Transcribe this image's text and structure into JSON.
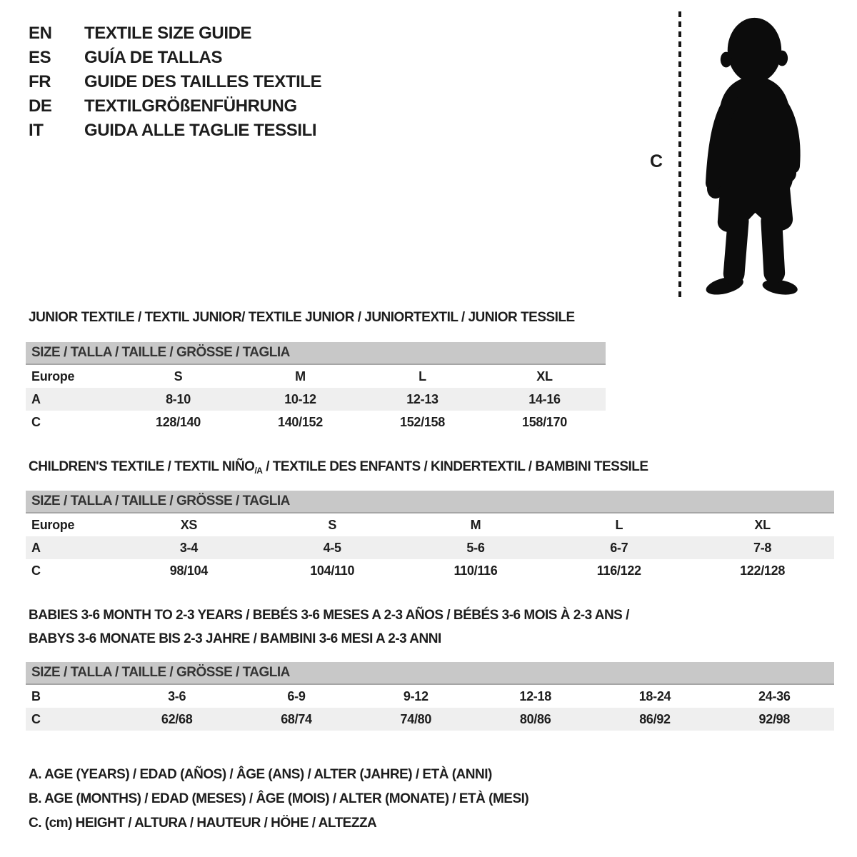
{
  "languages": [
    {
      "code": "EN",
      "label": "TEXTILE SIZE GUIDE"
    },
    {
      "code": "ES",
      "label": "GUÍA DE TALLAS"
    },
    {
      "code": "FR",
      "label": "GUIDE DES TAILLES TEXTILE"
    },
    {
      "code": "DE",
      "label": "TEXTILGRÖßENFÜHRUNG"
    },
    {
      "code": "IT",
      "label": "GUIDA ALLE TAGLIE TESSILI"
    }
  ],
  "figure": {
    "height_marker_label": "C"
  },
  "sections": {
    "junior": {
      "title": "JUNIOR TEXTILE / TEXTIL JUNIOR/ TEXTILE JUNIOR / JUNIORTEXTIL / JUNIOR TESSILE",
      "size_header": "SIZE / TALLA / TAILLE / GRÖSSE / TAGLIA",
      "rows": [
        {
          "label": "Europe",
          "shade": false,
          "cells": [
            "S",
            "M",
            "L",
            "XL"
          ]
        },
        {
          "label": "A",
          "shade": true,
          "cells": [
            "8-10",
            "10-12",
            "12-13",
            "14-16"
          ]
        },
        {
          "label": "C",
          "shade": false,
          "cells": [
            "128/140",
            "140/152",
            "152/158",
            "158/170"
          ]
        }
      ]
    },
    "children": {
      "title_pre": "CHILDREN'S TEXTILE / TEXTIL NIÑO",
      "title_sub": "/A",
      "title_post": " / TEXTILE DES ENFANTS / KINDERTEXTIL / BAMBINI TESSILE",
      "size_header": "SIZE / TALLA / TAILLE / GRÖSSE / TAGLIA",
      "rows": [
        {
          "label": "Europe",
          "shade": false,
          "cells": [
            "XS",
            "S",
            "M",
            "L",
            "XL"
          ]
        },
        {
          "label": "A",
          "shade": true,
          "cells": [
            "3-4",
            "4-5",
            "5-6",
            "6-7",
            "7-8"
          ]
        },
        {
          "label": "C",
          "shade": false,
          "cells": [
            "98/104",
            "104/110",
            "110/116",
            "116/122",
            "122/128"
          ]
        }
      ]
    },
    "babies": {
      "title_line1": "BABIES 3-6 MONTH TO 2-3 YEARS / BEBÉS 3-6 MESES A 2-3 AÑOS / BÉBÉS 3-6 MOIS À 2-3 ANS /",
      "title_line2": "BABYS 3-6 MONATE BIS 2-3 JAHRE / BAMBINI 3-6 MESI A 2-3 ANNI",
      "size_header": "SIZE / TALLA / TAILLE / GRÖSSE / TAGLIA",
      "rows": [
        {
          "label": "B",
          "shade": false,
          "cells": [
            "3-6",
            "6-9",
            "9-12",
            "12-18",
            "18-24",
            "24-36"
          ]
        },
        {
          "label": "C",
          "shade": true,
          "cells": [
            "62/68",
            "68/74",
            "74/80",
            "80/86",
            "86/92",
            "92/98"
          ]
        }
      ]
    }
  },
  "legend": {
    "line_a": "A. AGE (YEARS) / EDAD (AÑOS) / ÂGE (ANS) / ALTER (JAHRE) / ETÀ (ANNI)",
    "line_b": "B. AGE (MONTHS) / EDAD (MESES) / ÂGE (MOIS) / ALTER (MONATE) / ETÀ (MESI)",
    "line_c": "C. (cm) HEIGHT / ALTURA / HAUTEUR / HÖHE / ALTEZZA"
  },
  "colors": {
    "header_bar": "#c8c8c8",
    "row_shade": "#efefef",
    "text": "#1d1d1d",
    "silhouette": "#0c0c0c"
  }
}
